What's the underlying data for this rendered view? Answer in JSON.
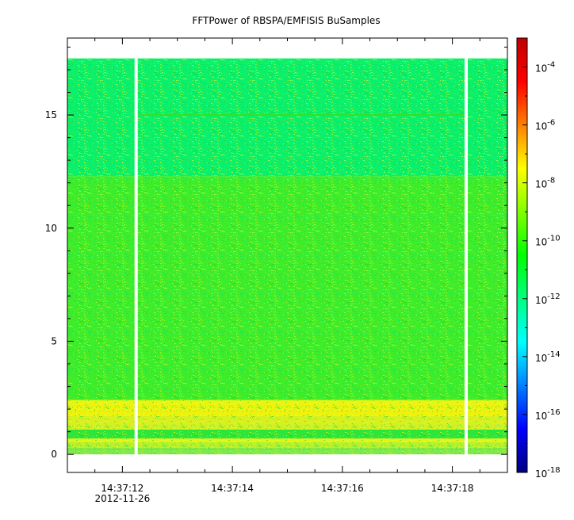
{
  "chart_data": {
    "type": "heatmap",
    "title": "FFTPower of RBSPA/EMFISIS  BuSamples",
    "xlabel": "",
    "ylabel": "",
    "x": {
      "ticks": [
        "14:37:12",
        "14:37:14",
        "14:37:16",
        "14:37:18"
      ],
      "tick_seconds": [
        12,
        14,
        16,
        18
      ],
      "range_seconds": [
        11.0,
        19.0
      ],
      "date_label": "2012-11-26"
    },
    "y": {
      "ticks": [
        "0",
        "5",
        "10",
        "15"
      ],
      "tick_values": [
        0,
        5,
        10,
        15
      ],
      "range": [
        -0.8,
        18.4
      ],
      "data_top": 17.5
    },
    "colorbar": {
      "scale": "log",
      "range": [
        1e-18,
        0.001
      ],
      "tick_labels": [
        {
          "base": "10",
          "exp": "-4",
          "value": -4
        },
        {
          "base": "10",
          "exp": "-6",
          "value": -6
        },
        {
          "base": "10",
          "exp": "-8",
          "value": -8
        },
        {
          "base": "10",
          "exp": "-10",
          "value": -10
        },
        {
          "base": "10",
          "exp": "-12",
          "value": -12
        },
        {
          "base": "10",
          "exp": "-14",
          "value": -14
        },
        {
          "base": "10",
          "exp": "-16",
          "value": -16
        },
        {
          "base": "10",
          "exp": "-18",
          "value": -18
        }
      ],
      "colors": [
        "#00007f",
        "#0000ff",
        "#0080ff",
        "#00ffff",
        "#00ff80",
        "#00ff00",
        "#80ff00",
        "#ffff00",
        "#ff8000",
        "#ff0000",
        "#c00000"
      ]
    },
    "gaps_seconds": [
      12.25,
      18.25
    ],
    "bands": [
      {
        "y0": 0.0,
        "y1": 0.3,
        "color": "#7fe84a"
      },
      {
        "y0": 0.3,
        "y1": 0.55,
        "color": "#b9f22b"
      },
      {
        "y0": 0.55,
        "y1": 0.7,
        "color": "#e6f413"
      },
      {
        "y0": 0.7,
        "y1": 1.1,
        "color": "#2ee63a"
      },
      {
        "y0": 1.1,
        "y1": 1.7,
        "color": "#d6f020"
      },
      {
        "y0": 1.7,
        "y1": 2.4,
        "color": "#eef30d"
      },
      {
        "y0": 2.4,
        "y1": 12.3,
        "color": "#3ded2c"
      },
      {
        "y0": 12.3,
        "y1": 17.5,
        "color": "#0cef6a"
      }
    ],
    "line_feature": {
      "y": 15.0,
      "color": "#30e030"
    }
  }
}
